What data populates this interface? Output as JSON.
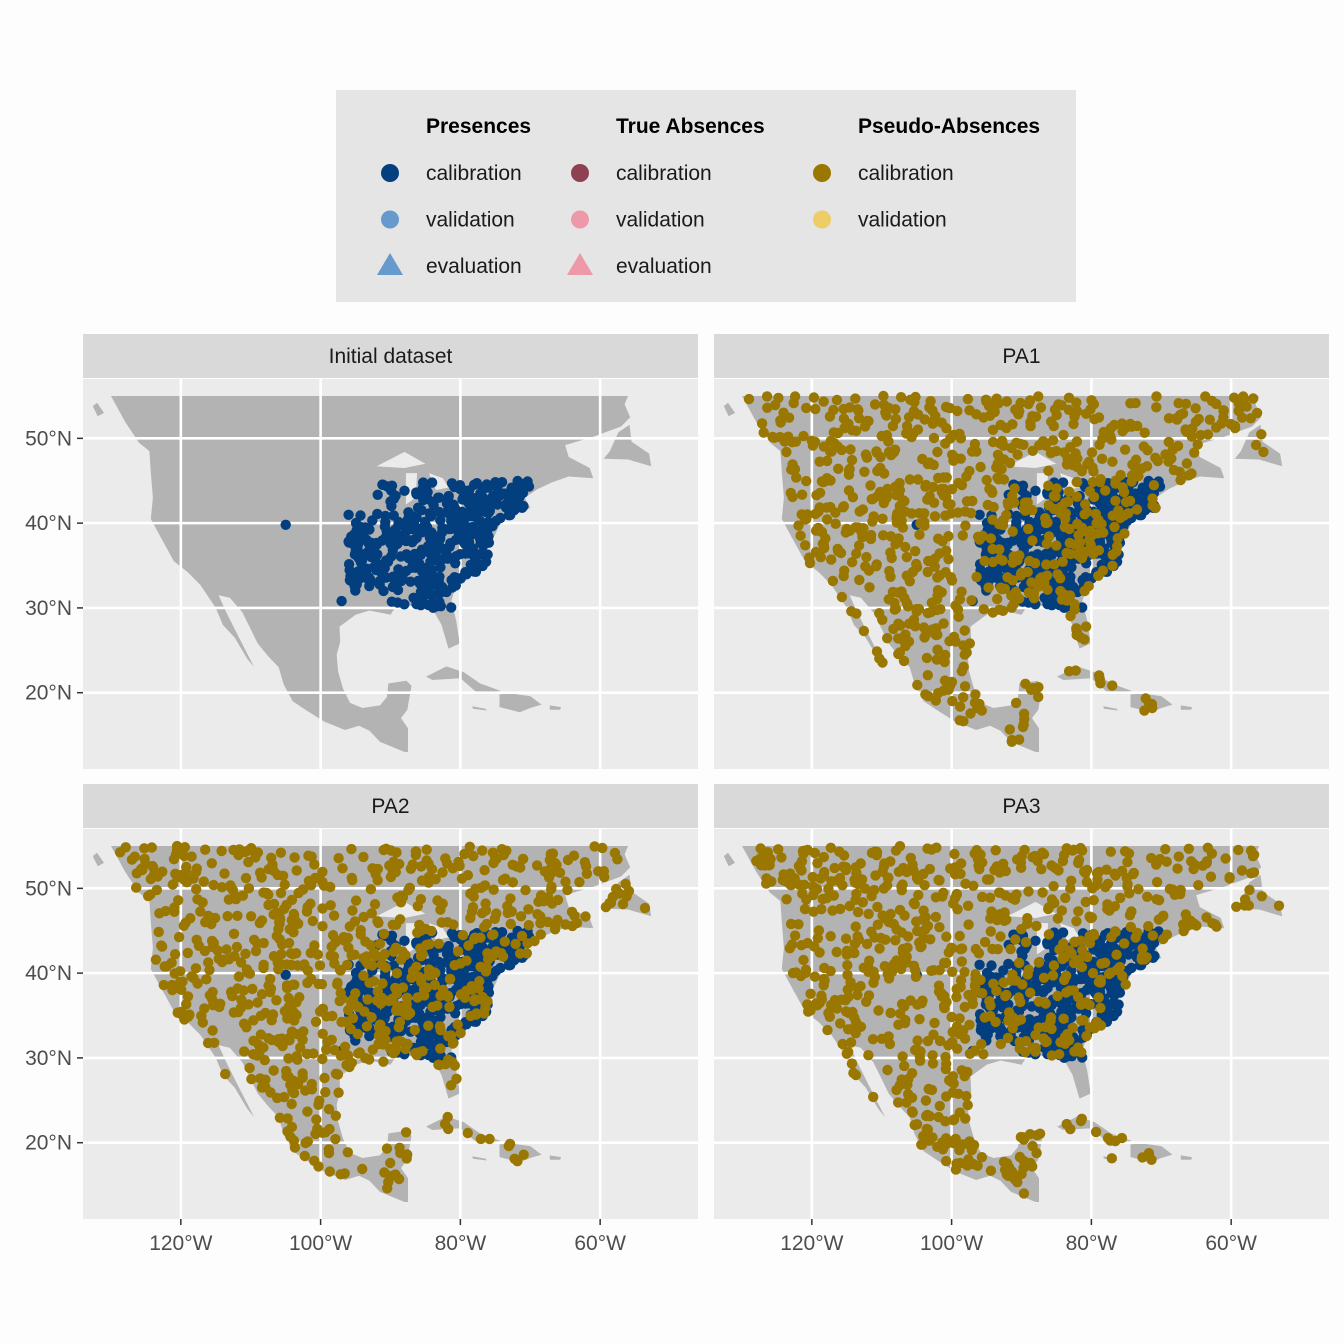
{
  "legend": {
    "groups": [
      {
        "title": "Presences",
        "items": [
          {
            "label": "calibration",
            "shape": "circle",
            "color": "#033f7e"
          },
          {
            "label": "validation",
            "shape": "circle",
            "color": "#6699cc"
          },
          {
            "label": "evaluation",
            "shape": "triangle",
            "color": "#6699cc"
          }
        ]
      },
      {
        "title": "True Absences",
        "items": [
          {
            "label": "calibration",
            "shape": "circle",
            "color": "#8e4150"
          },
          {
            "label": "validation",
            "shape": "circle",
            "color": "#ee99aa"
          },
          {
            "label": "evaluation",
            "shape": "triangle",
            "color": "#ee99aa"
          }
        ]
      },
      {
        "title": "Pseudo-Absences",
        "items": [
          {
            "label": "calibration",
            "shape": "circle",
            "color": "#997700"
          },
          {
            "label": "validation",
            "shape": "circle",
            "color": "#eecc66"
          }
        ]
      }
    ]
  },
  "chart_data": {
    "type": "scatter",
    "facets": [
      "Initial dataset",
      "PA1",
      "PA2",
      "PA3"
    ],
    "x_ticks": [
      -120,
      -100,
      -80,
      -60
    ],
    "x_tick_labels": [
      "120°W",
      "100°W",
      "80°W",
      "60°W"
    ],
    "y_ticks": [
      20,
      30,
      40,
      50
    ],
    "y_tick_labels": [
      "20°N",
      "30°N",
      "40°N",
      "50°N"
    ],
    "xlim": [
      -134,
      -46
    ],
    "ylim": [
      11,
      57
    ],
    "colors": {
      "land": "#b3b3b3",
      "panel": "#ebebeb",
      "grid": "#ffffff",
      "strip": "#d9d9d9",
      "presence_calibration": "#033f7e",
      "pa_calibration": "#997700"
    },
    "presence_region": {
      "lon": [
        -96,
        -70
      ],
      "lat": [
        30,
        45
      ],
      "outliers": [
        [
          -105,
          39.8
        ],
        [
          -97,
          30.8
        ]
      ]
    },
    "pseudo_absence_counts": {
      "PA1": 800,
      "PA2": 800,
      "PA3": 800
    }
  }
}
